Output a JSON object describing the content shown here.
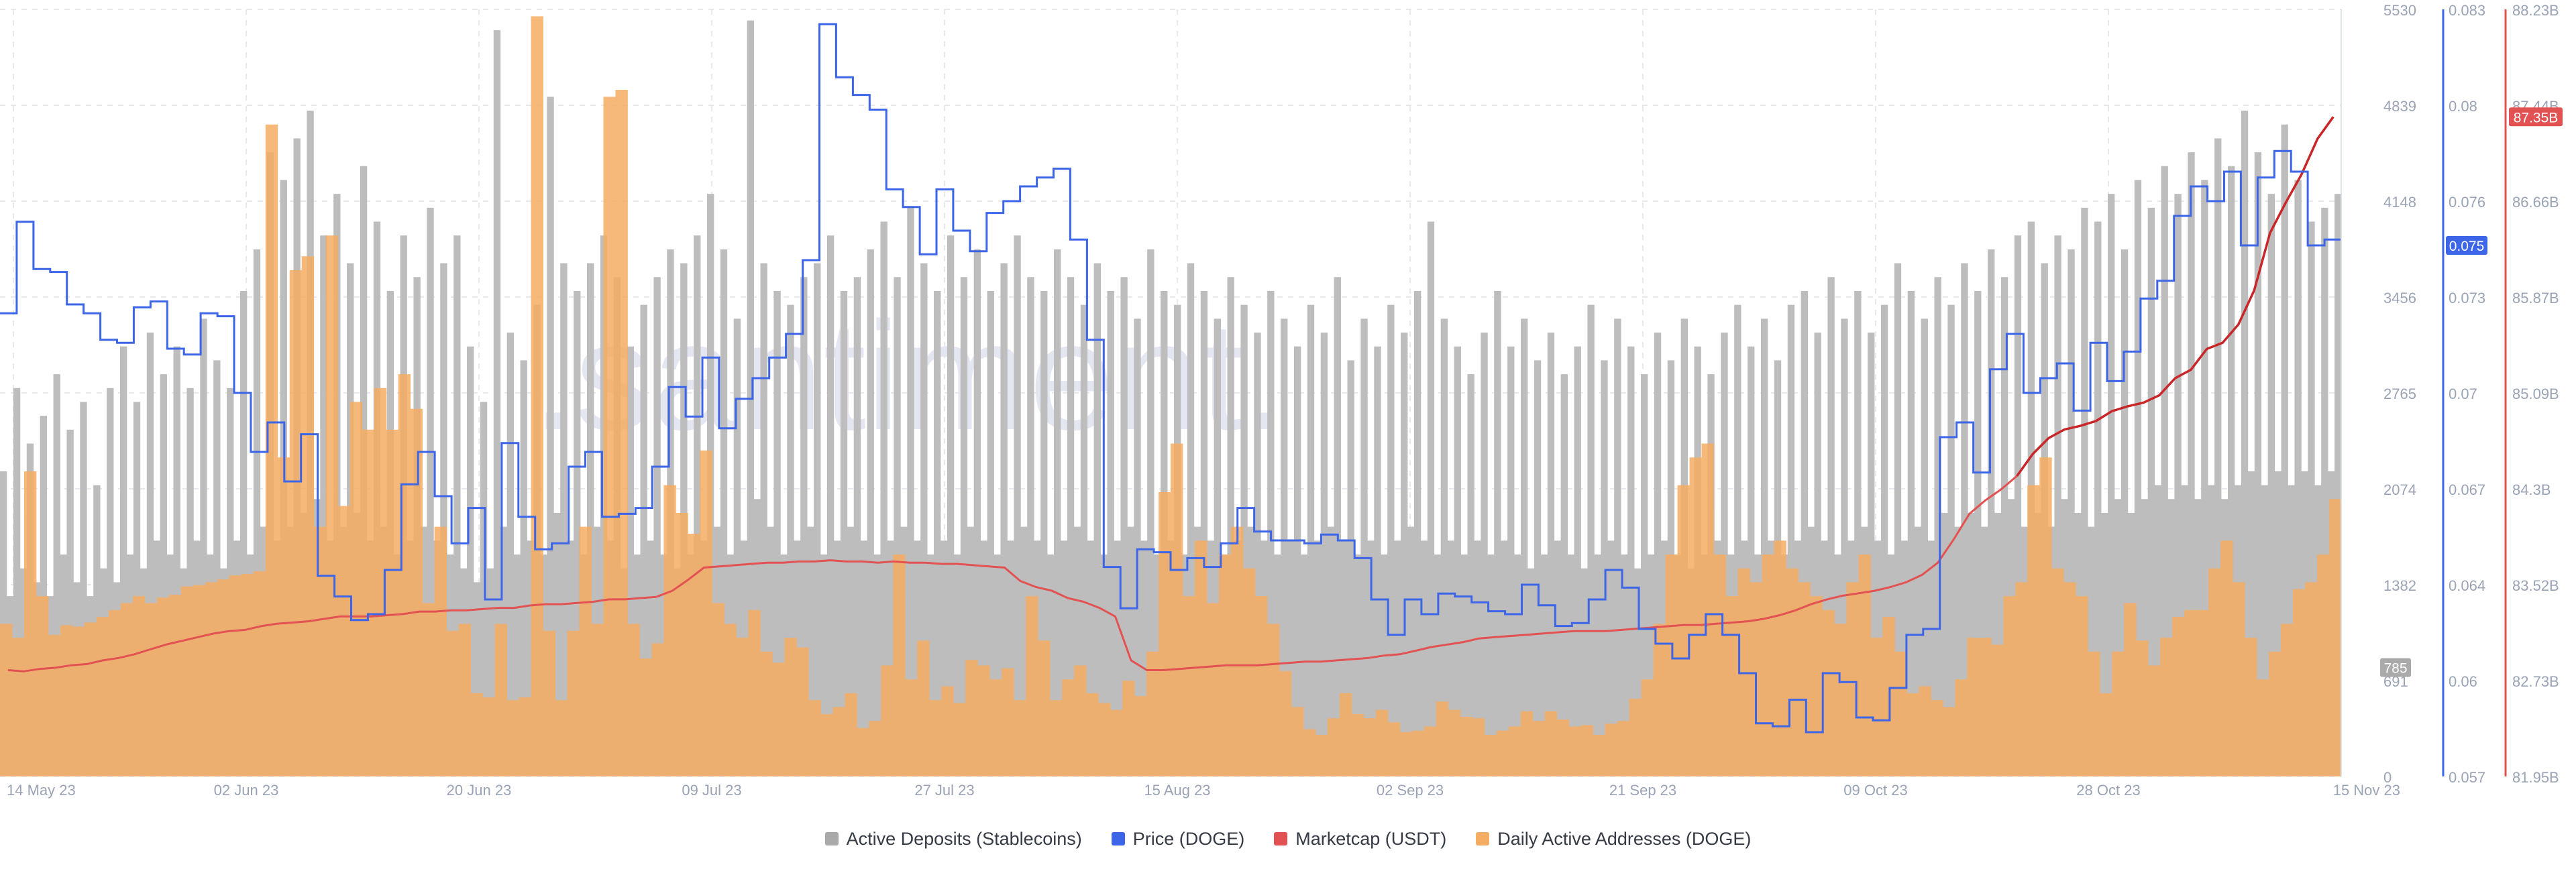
{
  "watermark": ".santiment.",
  "chart_data": {
    "type": "bar",
    "x_start_label": "14 May 23",
    "x_end_label": "15 Nov 23",
    "x_ticks": [
      "14 May 23",
      "02 Jun 23",
      "20 Jun 23",
      "09 Jul 23",
      "27 Jul 23",
      "15 Aug 23",
      "02 Sep 23",
      "21 Sep 23",
      "09 Oct 23",
      "28 Oct 23",
      "15 Nov 23"
    ],
    "grid": true,
    "legend_position": "bottom-center",
    "axes": {
      "deposits": {
        "ticks": [
          "5530",
          "4839",
          "4148",
          "3456",
          "2765",
          "2074",
          "1382",
          "691",
          "0"
        ],
        "range": [
          0,
          5530
        ],
        "color": "#aaaaaa"
      },
      "price": {
        "ticks": [
          "0.083",
          "0.08",
          "0.076",
          "0.073",
          "0.07",
          "0.067",
          "0.064",
          "0.06",
          "0.057"
        ],
        "range": [
          0.057,
          0.083
        ],
        "color": "#3c65e8"
      },
      "marketcap": {
        "ticks": [
          "88.23B",
          "87.44B",
          "86.66B",
          "85.87B",
          "85.09B",
          "84.3B",
          "83.52B",
          "82.73B",
          "81.95B"
        ],
        "range": [
          81.95,
          88.23
        ],
        "color": "#e35252"
      }
    },
    "current_badges": {
      "deposits": {
        "value": 785,
        "label": "785",
        "color": "#aaaaaa"
      },
      "price": {
        "value": 0.075,
        "label": "0.075",
        "color": "#3c65e8"
      },
      "marketcap": {
        "value": 87.35,
        "label": "87.35B",
        "color": "#e35252"
      }
    },
    "series": [
      {
        "name": "Active Deposits (Stablecoins)",
        "kind": "bar",
        "axis": "deposits",
        "color": "#bdbdbd",
        "points_per_day": 2,
        "values": [
          2200,
          1300,
          2800,
          1500,
          2400,
          1400,
          2600,
          1300,
          2900,
          1600,
          2500,
          1400,
          2700,
          1300,
          2100,
          1500,
          2800,
          1400,
          3100,
          1600,
          2700,
          1500,
          3200,
          1700,
          2900,
          1600,
          3100,
          1500,
          2800,
          1700,
          3300,
          1600,
          3000,
          1500,
          2800,
          1700,
          3500,
          1600,
          3800,
          1800,
          4500,
          1700,
          4300,
          1800,
          4600,
          1900,
          4800,
          2000,
          3900,
          1700,
          4200,
          1800,
          3700,
          1900,
          4400,
          1700,
          4000,
          1800,
          3500,
          1600,
          3900,
          1700,
          3600,
          1800,
          4100,
          1700,
          3700,
          1600,
          3900,
          1500,
          3100,
          1400,
          2700,
          1500,
          5380,
          1800,
          3200,
          1600,
          3000,
          1700,
          3400,
          1600,
          4900,
          1900,
          3700,
          1700,
          3500,
          1600,
          3700,
          1800,
          3900,
          1700,
          3600,
          1500,
          3100,
          1600,
          3400,
          1700,
          3600,
          1600,
          3800,
          1500,
          3700,
          1600,
          3900,
          1700,
          4200,
          1800,
          3800,
          1600,
          3300,
          1700,
          5450,
          2000,
          3700,
          1800,
          3500,
          1600,
          3400,
          1700,
          3600,
          1800,
          3700,
          1600,
          3900,
          1700,
          3500,
          1800,
          3600,
          1700,
          3800,
          1600,
          4000,
          1700,
          3600,
          1800,
          4100,
          1700,
          3700,
          1600,
          3500,
          1700,
          3900,
          1600,
          3600,
          1800,
          3800,
          1700,
          3500,
          1600,
          3700,
          1700,
          3900,
          1800,
          3600,
          1700,
          3500,
          1600,
          3800,
          1700,
          3600,
          1800,
          3400,
          1700,
          3700,
          1600,
          3500,
          1700,
          3600,
          1800,
          3300,
          1700,
          3800,
          1600,
          3500,
          1700,
          3400,
          1600,
          3700,
          1800,
          3500,
          1700,
          3300,
          1600,
          3600,
          1700,
          3400,
          1800,
          3200,
          1700,
          3500,
          1600,
          3300,
          1700,
          3100,
          1600,
          3400,
          1700,
          3200,
          1800,
          3600,
          1700,
          3000,
          1600,
          3300,
          1700,
          3100,
          1600,
          3400,
          1700,
          3200,
          1800,
          3500,
          1700,
          4000,
          1600,
          3300,
          1700,
          3100,
          1600,
          2900,
          1700,
          3200,
          1600,
          3500,
          1700,
          3100,
          1600,
          3300,
          1500,
          3000,
          1600,
          3200,
          1700,
          2900,
          1600,
          3100,
          1500,
          3400,
          1600,
          3000,
          1700,
          3300,
          1600,
          3100,
          1500,
          2900,
          1600,
          3200,
          1700,
          3000,
          1600,
          3300,
          1500,
          3100,
          1600,
          2900,
          1700,
          3200,
          1600,
          3400,
          1700,
          3100,
          1600,
          3300,
          1700,
          3000,
          1600,
          3400,
          1700,
          3500,
          1800,
          3200,
          1700,
          3600,
          1600,
          3300,
          1700,
          3500,
          1800,
          3200,
          1700,
          3400,
          1600,
          3700,
          1700,
          3500,
          1800,
          3300,
          1700,
          3600,
          1900,
          3400,
          1800,
          3700,
          1900,
          3500,
          1800,
          3800,
          1900,
          3600,
          2000,
          3900,
          1800,
          4000,
          1900,
          3700,
          1800,
          3900,
          2000,
          3800,
          1900,
          4100,
          1800,
          4000,
          1900,
          4200,
          2000,
          3800,
          1900,
          4300,
          2000,
          4100,
          2100,
          4400,
          2000,
          4200,
          2100,
          4500,
          2000,
          4300,
          2100,
          4600,
          2000,
          4400,
          2100,
          4800,
          2200,
          4500,
          2100,
          4200,
          2200,
          4700,
          2100,
          4300,
          2200,
          4000,
          2100,
          4100,
          2200,
          4200
        ]
      },
      {
        "name": "Price (DOGE)",
        "kind": "step-line",
        "axis": "price",
        "color": "#3c65e8",
        "points_per_day": 1,
        "values": [
          0.0727,
          0.0758,
          0.0742,
          0.0741,
          0.073,
          0.0727,
          0.0718,
          0.0717,
          0.0729,
          0.0731,
          0.0715,
          0.0713,
          0.0727,
          0.0726,
          0.07,
          0.068,
          0.069,
          0.067,
          0.0686,
          0.0638,
          0.0631,
          0.0623,
          0.0625,
          0.064,
          0.0669,
          0.068,
          0.0665,
          0.0649,
          0.0661,
          0.063,
          0.0683,
          0.0658,
          0.0647,
          0.0649,
          0.0675,
          0.068,
          0.0658,
          0.0659,
          0.0661,
          0.0675,
          0.0702,
          0.0692,
          0.0712,
          0.0688,
          0.0698,
          0.0705,
          0.0712,
          0.072,
          0.0745,
          0.0825,
          0.0807,
          0.0801,
          0.0796,
          0.0769,
          0.0763,
          0.0747,
          0.0769,
          0.0755,
          0.0748,
          0.0761,
          0.0765,
          0.077,
          0.0773,
          0.0776,
          0.0752,
          0.0718,
          0.0641,
          0.0627,
          0.0647,
          0.0646,
          0.064,
          0.0644,
          0.0641,
          0.0649,
          0.0661,
          0.0653,
          0.065,
          0.065,
          0.0649,
          0.0652,
          0.065,
          0.0644,
          0.063,
          0.0618,
          0.063,
          0.0625,
          0.0632,
          0.0631,
          0.0629,
          0.0626,
          0.0625,
          0.0635,
          0.0628,
          0.0621,
          0.0622,
          0.063,
          0.064,
          0.0634,
          0.062,
          0.0615,
          0.061,
          0.0618,
          0.0625,
          0.0618,
          0.0605,
          0.0588,
          0.0587,
          0.0596,
          0.0585,
          0.0605,
          0.0602,
          0.059,
          0.0589,
          0.06,
          0.0618,
          0.062,
          0.0685,
          0.069,
          0.0673,
          0.0708,
          0.072,
          0.07,
          0.0705,
          0.071,
          0.0694,
          0.0717,
          0.0704,
          0.0714,
          0.0732,
          0.0738,
          0.076,
          0.077,
          0.0765,
          0.0775,
          0.075,
          0.0773,
          0.0782,
          0.0775,
          0.075,
          0.0752
        ]
      },
      {
        "name": "Marketcap (USDT)",
        "kind": "line",
        "axis": "marketcap",
        "color": "#e35252",
        "color_recent": "#c9262a",
        "points_per_day": 1,
        "values": [
          82.82,
          82.81,
          82.83,
          82.84,
          82.86,
          82.87,
          82.9,
          82.92,
          82.95,
          82.99,
          83.03,
          83.06,
          83.09,
          83.12,
          83.14,
          83.15,
          83.18,
          83.2,
          83.21,
          83.22,
          83.24,
          83.26,
          83.26,
          83.26,
          83.27,
          83.28,
          83.3,
          83.3,
          83.31,
          83.31,
          83.32,
          83.33,
          83.33,
          83.35,
          83.36,
          83.36,
          83.37,
          83.38,
          83.4,
          83.4,
          83.41,
          83.42,
          83.47,
          83.56,
          83.66,
          83.67,
          83.68,
          83.69,
          83.7,
          83.7,
          83.71,
          83.71,
          83.72,
          83.71,
          83.71,
          83.7,
          83.71,
          83.7,
          83.7,
          83.69,
          83.69,
          83.68,
          83.67,
          83.66,
          83.55,
          83.5,
          83.47,
          83.41,
          83.38,
          83.33,
          83.26,
          82.9,
          82.82,
          82.82,
          82.83,
          82.84,
          82.85,
          82.86,
          82.86,
          82.86,
          82.87,
          82.88,
          82.89,
          82.89,
          82.9,
          82.91,
          82.92,
          82.94,
          82.95,
          82.98,
          83.01,
          83.03,
          83.05,
          83.08,
          83.09,
          83.1,
          83.11,
          83.12,
          83.13,
          83.14,
          83.14,
          83.14,
          83.15,
          83.16,
          83.17,
          83.18,
          83.19,
          83.19,
          83.2,
          83.21,
          83.22,
          83.24,
          83.27,
          83.31,
          83.36,
          83.4,
          83.43,
          83.45,
          83.47,
          83.5,
          83.54,
          83.6,
          83.7,
          83.89,
          84.1,
          84.21,
          84.3,
          84.41,
          84.59,
          84.72,
          84.79,
          84.82,
          84.86,
          84.94,
          84.98,
          85.01,
          85.07,
          85.21,
          85.28,
          85.45,
          85.5,
          85.65,
          85.93,
          86.4,
          86.65,
          86.88,
          87.17,
          87.35
        ]
      },
      {
        "name": "Daily Active Addresses (DOGE)",
        "kind": "bar",
        "axis": "deposits",
        "color": "#f5ad63",
        "points_per_day": 1,
        "values": [
          1100,
          1000,
          2200,
          1300,
          1020,
          1090,
          1080,
          1110,
          1150,
          1200,
          1250,
          1300,
          1250,
          1290,
          1310,
          1370,
          1380,
          1400,
          1420,
          1450,
          1460,
          1480,
          4700,
          2300,
          3650,
          3750,
          1800,
          3900,
          1950,
          2700,
          2500,
          2800,
          2500,
          2900,
          2650,
          1250,
          1800,
          1050,
          1100,
          600,
          570,
          1100,
          550,
          570,
          5480,
          1050,
          550,
          1050,
          1800,
          1100,
          4900,
          4950,
          1100,
          850,
          960,
          2100,
          1900,
          1750,
          2350,
          1250,
          1100,
          1000,
          1200,
          900,
          820,
          1000,
          930,
          550,
          450,
          500,
          600,
          350,
          400,
          800,
          1600,
          700,
          980,
          550,
          650,
          530,
          840,
          800,
          700,
          780,
          550,
          1300,
          980,
          550,
          700,
          800,
          600,
          530,
          480,
          690,
          580,
          900,
          2050,
          2400,
          1300,
          1700,
          1250,
          1600,
          1800,
          1500,
          1300,
          1100,
          760,
          500,
          340,
          300,
          420,
          600,
          450,
          420,
          480,
          390,
          320,
          330,
          360,
          540,
          480,
          430,
          420,
          300,
          330,
          360,
          470,
          400,
          470,
          410,
          360,
          370,
          300,
          380,
          400,
          560,
          700,
          1100,
          1600,
          2100,
          2300,
          2400,
          1600,
          1300,
          1500,
          1400,
          1600,
          1700,
          1500,
          1400,
          1300,
          1200,
          1100,
          1400,
          1600,
          1000,
          1150,
          900,
          600,
          650,
          550,
          500,
          700,
          1000,
          1000,
          950,
          1300,
          1400,
          2100,
          2300,
          1500,
          1400,
          1300,
          900,
          600,
          900,
          1250,
          980,
          800,
          1000,
          1150,
          1200,
          1200,
          1500,
          1700,
          1400,
          1000,
          700,
          900,
          1100,
          1350,
          1400,
          1600,
          2000
        ]
      }
    ]
  },
  "legend": [
    {
      "label": "Active Deposits (Stablecoins)",
      "color": "#aaaaaa"
    },
    {
      "label": "Price (DOGE)",
      "color": "#3c65e8"
    },
    {
      "label": "Marketcap (USDT)",
      "color": "#e35252"
    },
    {
      "label": "Daily Active Addresses (DOGE)",
      "color": "#f5ad63"
    }
  ]
}
